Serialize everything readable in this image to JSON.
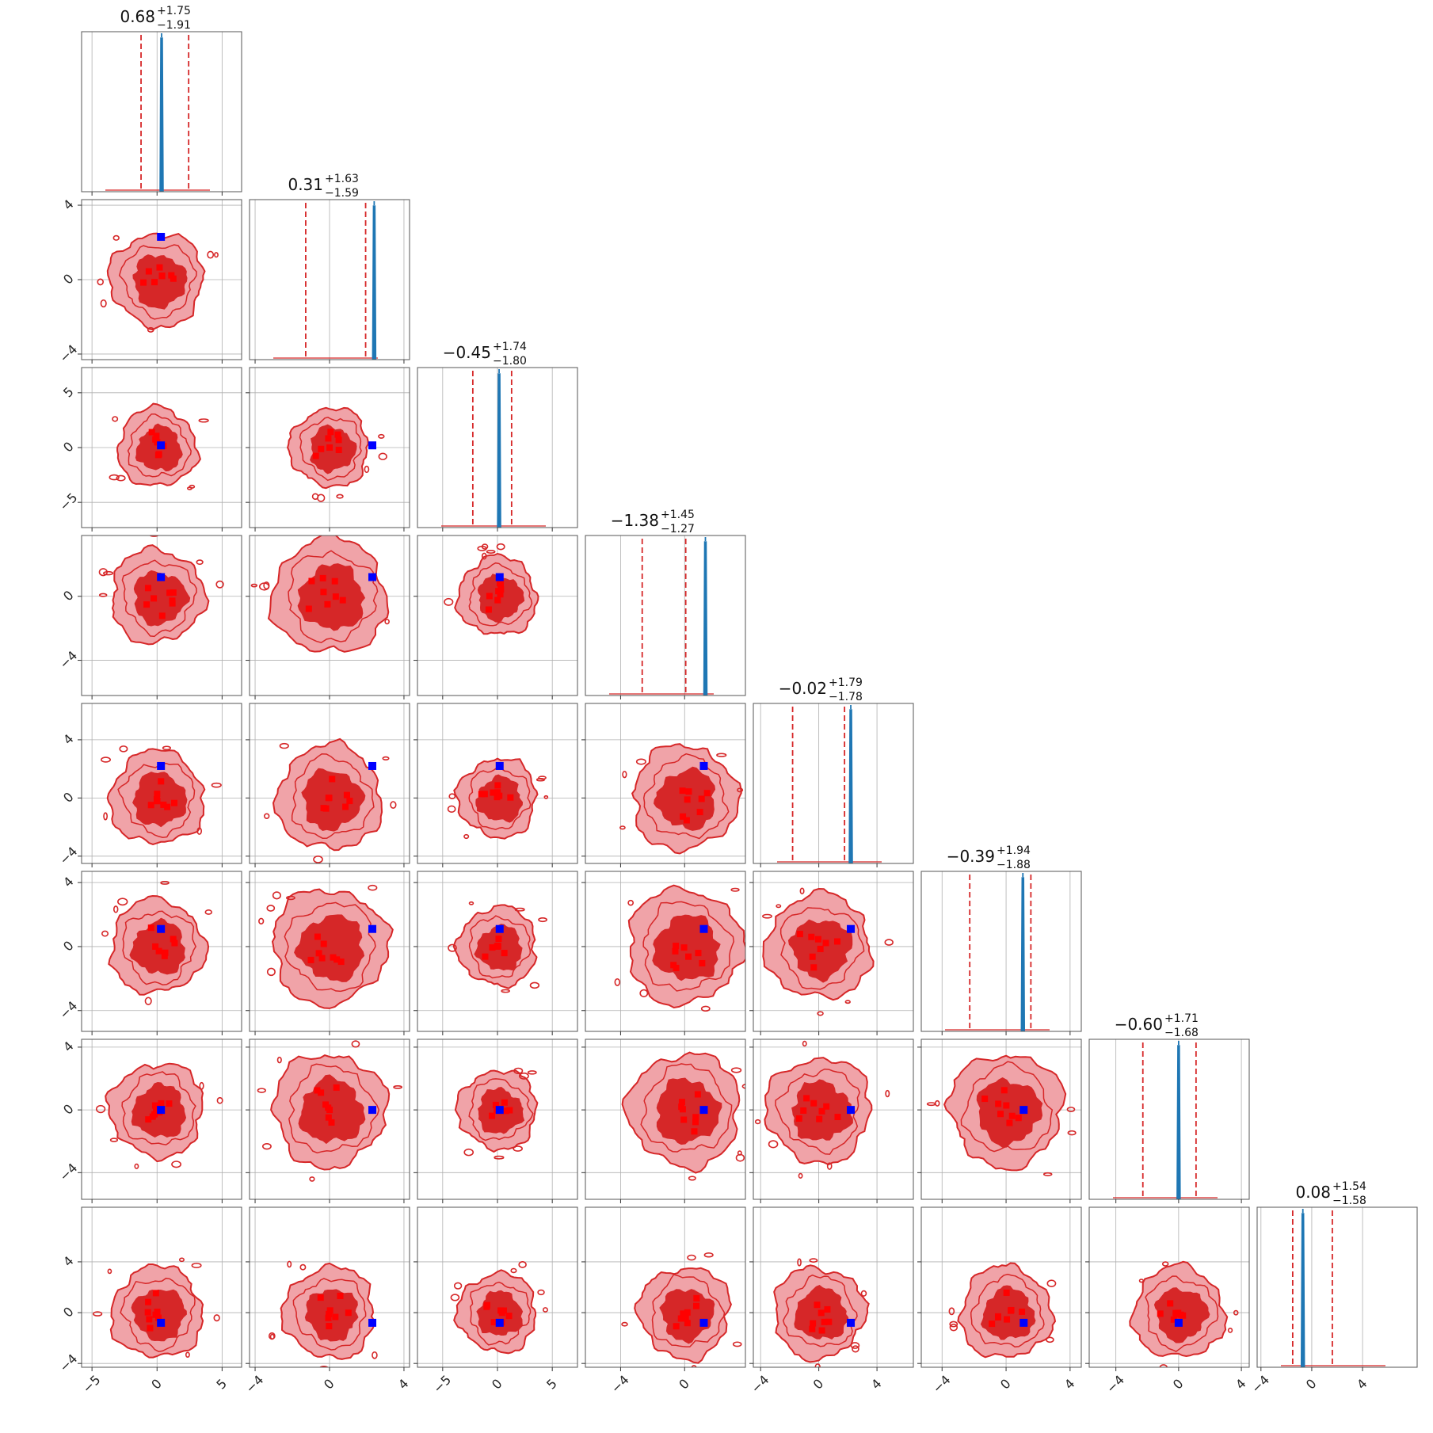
{
  "chart_data": {
    "type": "corner",
    "n_params": 8,
    "colors": {
      "contour_outer": "#f0a3a8",
      "contour_inner": "#d62728",
      "contour_line": "#d62728",
      "quantile_line": "#d62728",
      "truth_marker": "#0000ff",
      "sample_marker": "#ff0000",
      "posterior_line": "#1f77b4",
      "grid": "#b0b0b0"
    },
    "grid": true,
    "truths": [
      0.3,
      2.3,
      0.2,
      1.2,
      2.2,
      1.1,
      0.0,
      -0.8
    ],
    "axis_ticks": [
      {
        "range": [
          -5.8,
          6.5
        ],
        "ticks": [
          -5,
          0,
          5
        ],
        "labels": [
          "−5",
          "0",
          "5"
        ]
      },
      {
        "range": [
          -4.3,
          4.3
        ],
        "ticks": [
          -4,
          0,
          4
        ],
        "labels": [
          "−4",
          "0",
          "4"
        ]
      },
      {
        "range": [
          -7.3,
          7.3
        ],
        "ticks": [
          -5,
          0,
          5
        ],
        "labels": [
          "−5",
          "0",
          "5"
        ]
      },
      {
        "range": [
          -6.2,
          3.8
        ],
        "ticks": [
          -4,
          0
        ],
        "labels": [
          "−4",
          "0"
        ]
      },
      {
        "range": [
          -4.5,
          6.5
        ],
        "ticks": [
          -4,
          0,
          4
        ],
        "labels": [
          "−4",
          "0",
          "4"
        ]
      },
      {
        "range": [
          -5.3,
          4.7
        ],
        "ticks": [
          -4,
          0,
          4
        ],
        "labels": [
          "−4",
          "0",
          "4"
        ]
      },
      {
        "range": [
          -5.7,
          4.5
        ],
        "ticks": [
          -4,
          0,
          4
        ],
        "labels": [
          "−4",
          "0",
          "4"
        ]
      },
      {
        "range": [
          -4.3,
          8.3
        ],
        "ticks": [
          -4,
          0,
          4
        ],
        "labels": [
          "−4",
          "0",
          "4"
        ]
      }
    ],
    "marginals": [
      {
        "median": "0.68",
        "plus": "+1.75",
        "minus": "−1.91",
        "q_low": -1.23,
        "q_high": 2.43,
        "peak": 0.35
      },
      {
        "median": "0.31",
        "plus": "+1.63",
        "minus": "−1.59",
        "q_low": -1.28,
        "q_high": 1.94,
        "peak": 2.4
      },
      {
        "median": "−0.45",
        "plus": "+1.74",
        "minus": "−1.80",
        "q_low": -2.25,
        "q_high": 1.29,
        "peak": 0.15
      },
      {
        "median": "−1.38",
        "plus": "+1.45",
        "minus": "−1.27",
        "q_low": -2.65,
        "q_high": 0.07,
        "peak": 1.3
      },
      {
        "median": "−0.02",
        "plus": "+1.79",
        "minus": "−1.78",
        "q_low": -1.8,
        "q_high": 1.77,
        "peak": 2.2
      },
      {
        "median": "−0.39",
        "plus": "+1.94",
        "minus": "−1.88",
        "q_low": -2.27,
        "q_high": 1.55,
        "peak": 1.05
      },
      {
        "median": "−0.60",
        "plus": "+1.71",
        "minus": "−1.68",
        "q_low": -2.28,
        "q_high": 1.11,
        "peak": 0.0
      },
      {
        "median": "0.08",
        "plus": "+1.54",
        "minus": "−1.58",
        "q_low": -1.5,
        "q_high": 1.62,
        "peak": -0.7
      }
    ]
  }
}
